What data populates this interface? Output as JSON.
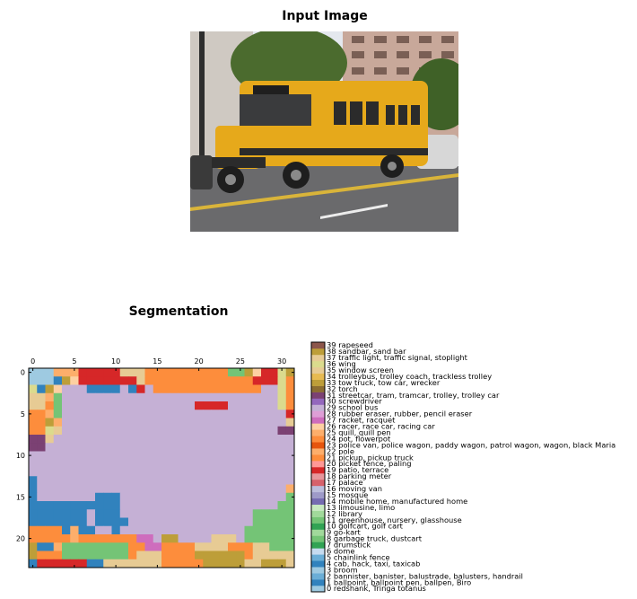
{
  "figure": {
    "input_title": "Input Image",
    "seg_title": "Segmentation"
  },
  "colors": {
    "sky": "#e4e8ee",
    "tree": "#4b6b2e",
    "building": "#c8a89a",
    "road": "#6a6a6c",
    "bus": "#e6a91b",
    "bus_dark": "#2b2b2b"
  },
  "chart_data": {
    "type": "heatmap",
    "title": "Segmentation",
    "xlim": [
      0,
      32
    ],
    "ylim": [
      24,
      0
    ],
    "xticks": [
      0,
      5,
      10,
      15,
      20,
      25,
      30
    ],
    "yticks": [
      0,
      5,
      10,
      15,
      20
    ],
    "grid": false,
    "colorbar": {
      "range": [
        0,
        39
      ],
      "labels": [
        "0 redshank, Tringa totanus",
        "1 ballpoint, ballpoint pen, ballpen, Biro",
        "2 bannister, banister, balustrade, balusters, handrail",
        "3 broom",
        "4 cab, hack, taxi, taxicab",
        "5 chainlink fence",
        "6 dome",
        "7 drumstick",
        "8 garbage truck, dustcart",
        "9 go-kart",
        "10 golfcart, golf cart",
        "11 greenhouse, nursery, glasshouse",
        "12 library",
        "13 limousine, limo",
        "14 mobile home, manufactured home",
        "15 mosque",
        "16 moving van",
        "17 palace",
        "18 parking meter",
        "19 patio, terrace",
        "20 picket fence, paling",
        "21 pickup, pickup truck",
        "22 pole",
        "23 police van, police wagon, paddy wagon, patrol wagon, wagon, black Maria",
        "24 pot, flowerpot",
        "25 quill, quill pen",
        "26 racer, race car, racing car",
        "27 racket, racquet",
        "28 rubber eraser, rubber, pencil eraser",
        "29 school bus",
        "30 screwdriver",
        "31 streetcar, tram, tramcar, trolley, trolley car",
        "32 torch",
        "33 tow truck, tow car, wrecker",
        "34 trolleybus, trolley coach, trackless trolley",
        "35 window screen",
        "36 wing",
        "37 traffic light, traffic signal, stoplight",
        "38 sandbar, sand bar",
        "39 rapeseed"
      ],
      "colors": [
        "#9ecae1",
        "#3182bd",
        "#6baed6",
        "#9ecae1",
        "#3182bd",
        "#6baed6",
        "#c6dbef",
        "#31a354",
        "#74c476",
        "#a1d99b",
        "#31a354",
        "#74c476",
        "#a1d99b",
        "#c7e9c0",
        "#756bb1",
        "#9e9ac8",
        "#bcbddc",
        "#d6616b",
        "#e7969c",
        "#d62728",
        "#ff9896",
        "#fd8d3c",
        "#fdae6b",
        "#e6550d",
        "#fd8d3c",
        "#fdae6b",
        "#fdd0a2",
        "#ce6dbd",
        "#de9ed6",
        "#c5b0d5",
        "#9467bd",
        "#7b4173",
        "#8c6d31",
        "#bd9e39",
        "#e7ba52",
        "#e7cb94",
        "#dbdb8d",
        "#e7cb94",
        "#bd9e39",
        "#8c564b"
      ]
    },
    "grid_values": [
      [
        3,
        3,
        3,
        25,
        25,
        25,
        19,
        19,
        19,
        19,
        19,
        35,
        35,
        35,
        24,
        24,
        24,
        24,
        24,
        24,
        24,
        24,
        24,
        24,
        11,
        11,
        38,
        26,
        19,
        19,
        36,
        38
      ],
      [
        3,
        3,
        3,
        4,
        38,
        26,
        19,
        19,
        19,
        19,
        19,
        19,
        19,
        35,
        24,
        24,
        24,
        24,
        24,
        24,
        24,
        24,
        24,
        24,
        24,
        24,
        24,
        19,
        19,
        19,
        36,
        24
      ],
      [
        36,
        4,
        38,
        26,
        29,
        29,
        29,
        4,
        4,
        4,
        4,
        29,
        4,
        19,
        29,
        24,
        24,
        24,
        24,
        24,
        24,
        24,
        24,
        24,
        24,
        24,
        24,
        24,
        29,
        29,
        36,
        24
      ],
      [
        35,
        35,
        25,
        11,
        29,
        29,
        29,
        29,
        29,
        29,
        29,
        29,
        29,
        29,
        29,
        29,
        29,
        29,
        29,
        29,
        29,
        29,
        29,
        29,
        29,
        29,
        29,
        29,
        29,
        29,
        36,
        24
      ],
      [
        35,
        35,
        24,
        11,
        29,
        29,
        29,
        29,
        29,
        29,
        29,
        29,
        29,
        29,
        29,
        29,
        29,
        29,
        29,
        29,
        19,
        19,
        19,
        19,
        29,
        29,
        29,
        29,
        29,
        29,
        36,
        24
      ],
      [
        24,
        24,
        25,
        11,
        29,
        29,
        29,
        29,
        29,
        29,
        29,
        29,
        29,
        29,
        29,
        29,
        29,
        29,
        29,
        29,
        29,
        29,
        29,
        29,
        29,
        29,
        29,
        29,
        29,
        29,
        29,
        19
      ],
      [
        24,
        24,
        38,
        25,
        29,
        29,
        29,
        29,
        29,
        29,
        29,
        29,
        29,
        29,
        29,
        29,
        29,
        29,
        29,
        29,
        29,
        29,
        29,
        29,
        29,
        29,
        29,
        29,
        29,
        29,
        29,
        35
      ],
      [
        24,
        24,
        36,
        35,
        29,
        29,
        29,
        29,
        29,
        29,
        29,
        29,
        29,
        29,
        29,
        29,
        29,
        29,
        29,
        29,
        29,
        29,
        29,
        29,
        29,
        29,
        29,
        29,
        29,
        29,
        31,
        31
      ],
      [
        31,
        31,
        35,
        29,
        29,
        29,
        29,
        29,
        29,
        29,
        29,
        29,
        29,
        29,
        29,
        29,
        29,
        29,
        29,
        29,
        29,
        29,
        29,
        29,
        29,
        29,
        29,
        29,
        29,
        29,
        29,
        29
      ],
      [
        31,
        31,
        29,
        29,
        29,
        29,
        29,
        29,
        29,
        29,
        29,
        29,
        29,
        29,
        29,
        29,
        29,
        29,
        29,
        29,
        29,
        29,
        29,
        29,
        29,
        29,
        29,
        29,
        29,
        29,
        29,
        29
      ],
      [
        29,
        29,
        29,
        29,
        29,
        29,
        29,
        29,
        29,
        29,
        29,
        29,
        29,
        29,
        29,
        29,
        29,
        29,
        29,
        29,
        29,
        29,
        29,
        29,
        29,
        29,
        29,
        29,
        29,
        29,
        29,
        29
      ],
      [
        29,
        29,
        29,
        29,
        29,
        29,
        29,
        29,
        29,
        29,
        29,
        29,
        29,
        29,
        29,
        29,
        29,
        29,
        29,
        29,
        29,
        29,
        29,
        29,
        29,
        29,
        29,
        29,
        29,
        29,
        29,
        29
      ],
      [
        29,
        29,
        29,
        29,
        29,
        29,
        29,
        29,
        29,
        29,
        29,
        29,
        29,
        29,
        29,
        29,
        29,
        29,
        29,
        29,
        29,
        29,
        29,
        29,
        29,
        29,
        29,
        29,
        29,
        29,
        29,
        29
      ],
      [
        4,
        29,
        29,
        29,
        29,
        29,
        29,
        29,
        29,
        29,
        29,
        29,
        29,
        29,
        29,
        29,
        29,
        29,
        29,
        29,
        29,
        29,
        29,
        29,
        29,
        29,
        29,
        29,
        29,
        29,
        29,
        29
      ],
      [
        4,
        29,
        29,
        29,
        29,
        29,
        29,
        29,
        29,
        29,
        29,
        29,
        29,
        29,
        29,
        29,
        29,
        29,
        29,
        29,
        29,
        29,
        29,
        29,
        29,
        29,
        29,
        29,
        29,
        29,
        29,
        22
      ],
      [
        4,
        29,
        29,
        29,
        29,
        29,
        29,
        29,
        4,
        4,
        4,
        29,
        29,
        29,
        29,
        29,
        29,
        29,
        29,
        29,
        29,
        29,
        29,
        29,
        29,
        29,
        29,
        29,
        29,
        29,
        29,
        8
      ],
      [
        4,
        4,
        4,
        4,
        4,
        4,
        4,
        4,
        4,
        4,
        4,
        29,
        29,
        29,
        29,
        29,
        29,
        29,
        29,
        29,
        29,
        29,
        29,
        29,
        29,
        29,
        29,
        29,
        29,
        29,
        8,
        8
      ],
      [
        4,
        4,
        4,
        4,
        4,
        4,
        4,
        29,
        4,
        4,
        4,
        29,
        29,
        29,
        29,
        29,
        29,
        29,
        29,
        29,
        29,
        29,
        29,
        29,
        29,
        29,
        29,
        8,
        8,
        8,
        8,
        8
      ],
      [
        4,
        4,
        4,
        4,
        4,
        4,
        4,
        29,
        4,
        4,
        4,
        4,
        29,
        29,
        29,
        29,
        29,
        29,
        29,
        29,
        29,
        29,
        29,
        29,
        29,
        29,
        29,
        8,
        8,
        8,
        8,
        8
      ],
      [
        24,
        24,
        24,
        24,
        4,
        25,
        4,
        4,
        29,
        29,
        4,
        29,
        29,
        29,
        29,
        29,
        29,
        29,
        29,
        29,
        29,
        29,
        29,
        29,
        29,
        29,
        8,
        8,
        8,
        8,
        8,
        8
      ],
      [
        24,
        24,
        24,
        24,
        24,
        25,
        24,
        24,
        24,
        24,
        24,
        24,
        24,
        27,
        27,
        29,
        38,
        38,
        29,
        29,
        29,
        29,
        35,
        35,
        35,
        29,
        8,
        8,
        8,
        8,
        8,
        8
      ],
      [
        38,
        4,
        4,
        25,
        8,
        8,
        8,
        8,
        8,
        8,
        8,
        8,
        24,
        24,
        27,
        27,
        24,
        24,
        24,
        24,
        35,
        35,
        35,
        35,
        24,
        24,
        24,
        35,
        35,
        8,
        8,
        8
      ],
      [
        38,
        24,
        24,
        24,
        8,
        8,
        8,
        8,
        8,
        8,
        8,
        8,
        24,
        35,
        35,
        35,
        24,
        24,
        24,
        24,
        38,
        38,
        38,
        38,
        38,
        38,
        24,
        35,
        35,
        35,
        35,
        35
      ],
      [
        4,
        19,
        19,
        19,
        19,
        19,
        19,
        4,
        4,
        35,
        35,
        35,
        35,
        35,
        35,
        35,
        24,
        24,
        24,
        24,
        24,
        38,
        38,
        38,
        38,
        38,
        35,
        35,
        38,
        38,
        38,
        35
      ]
    ]
  }
}
